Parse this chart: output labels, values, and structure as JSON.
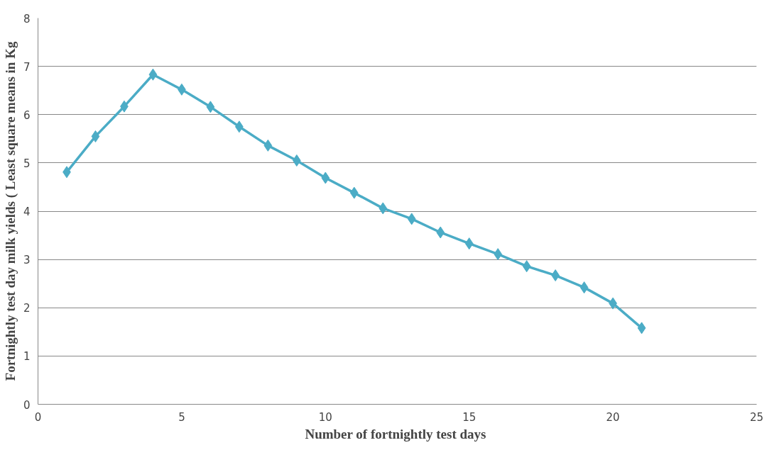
{
  "chart_data": {
    "type": "line",
    "xlabel": "Number of fortnightly test  days",
    "ylabel": "Fortnightly test day milk yields ( Least square means in Kg",
    "x": [
      1,
      2,
      3,
      4,
      5,
      6,
      7,
      8,
      9,
      10,
      11,
      12,
      13,
      14,
      15,
      16,
      17,
      18,
      19,
      20,
      21
    ],
    "series": [
      {
        "color": "#4bacc6",
        "values": [
          4.81,
          5.55,
          6.17,
          6.83,
          6.52,
          6.16,
          5.75,
          5.36,
          5.05,
          4.69,
          4.38,
          4.06,
          3.84,
          3.56,
          3.33,
          3.11,
          2.86,
          2.67,
          2.42,
          2.09,
          1.58
        ]
      }
    ],
    "xlim": [
      0,
      25
    ],
    "xticks": [
      0,
      5,
      10,
      15,
      20,
      25
    ],
    "ylim": [
      0,
      8
    ],
    "yticks": [
      0,
      1,
      2,
      3,
      4,
      5,
      6,
      7,
      8
    ],
    "grid": "y",
    "marker": "diamond",
    "line_style": "solid"
  }
}
